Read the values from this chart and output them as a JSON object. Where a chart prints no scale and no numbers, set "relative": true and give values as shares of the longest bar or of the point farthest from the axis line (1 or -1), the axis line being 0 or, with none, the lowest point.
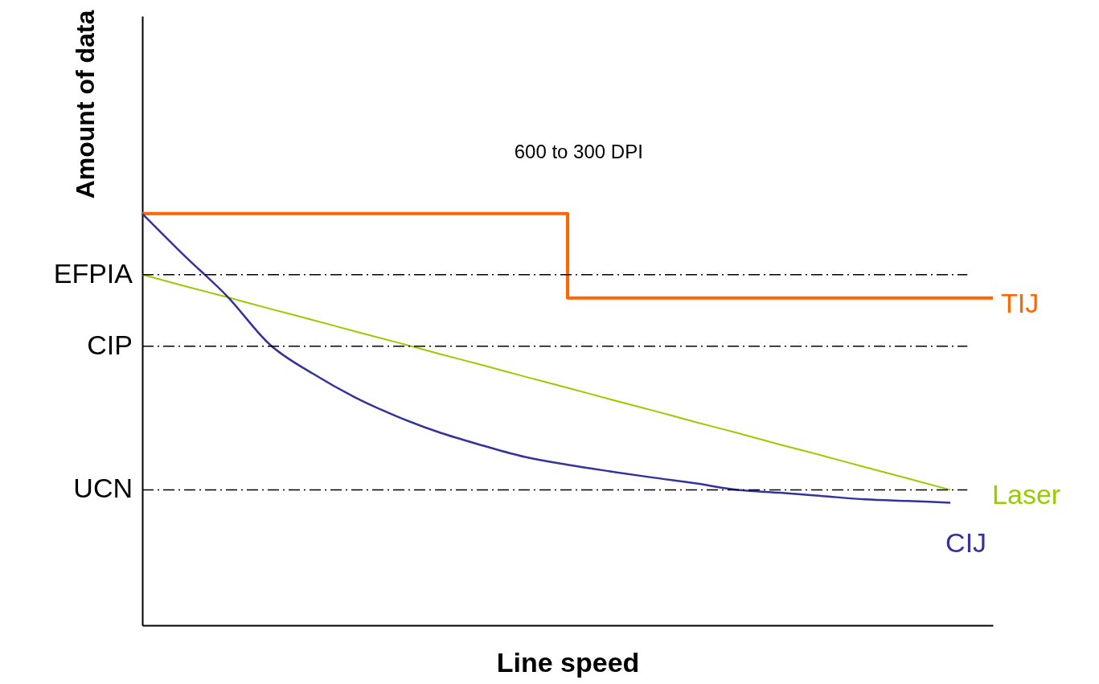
{
  "chart_data": {
    "type": "line",
    "relative": true,
    "xlabel": "Line speed",
    "ylabel": "Amount of data",
    "annotations": [
      "600 to 300 DPI"
    ],
    "grid": false,
    "marker": "none",
    "line_style": "solid",
    "categories": [
      null,
      null,
      null,
      null,
      null,
      null,
      null,
      null,
      null,
      null,
      null,
      null,
      null,
      null,
      null,
      null,
      null,
      null,
      null,
      null,
      null
    ],
    "series": [
      {
        "name": "TIJ",
        "type": "step",
        "color": "#ff6600",
        "values": [
          1,
          1,
          1,
          1,
          1,
          1,
          1,
          1,
          1,
          1,
          0.795,
          0.795,
          0.795,
          0.795,
          0.795,
          0.795,
          0.795,
          0.795,
          0.795,
          0.795,
          0.795
        ]
      },
      {
        "name": "Laser",
        "color": "#99cc00",
        "values": [
          0.852,
          0.824,
          0.797,
          0.769,
          0.742,
          0.714,
          0.687,
          0.659,
          0.632,
          0.604,
          0.577,
          0.549,
          0.522,
          0.494,
          0.467,
          0.439,
          0.412,
          0.384,
          0.357,
          0.329,
          null
        ]
      },
      {
        "name": "CIJ",
        "color": "#333399",
        "values": [
          1,
          0.897,
          0.799,
          0.682,
          0.612,
          0.554,
          0.507,
          0.468,
          0.437,
          0.409,
          0.39,
          0.374,
          0.359,
          0.345,
          0.329,
          0.322,
          0.314,
          0.306,
          0.302,
          0.298,
          null
        ]
      }
    ],
    "ref_lines": [
      {
        "axis": "y",
        "value": 0.852,
        "label": "EFPIA",
        "color": "#000000",
        "line_style": "dashed"
      },
      {
        "axis": "y",
        "value": 0.678,
        "label": "CIP",
        "color": "#000000",
        "line_style": "dashed"
      },
      {
        "axis": "y",
        "value": 0.329,
        "label": "UCN",
        "color": "#000000",
        "line_style": "dashed"
      }
    ]
  }
}
